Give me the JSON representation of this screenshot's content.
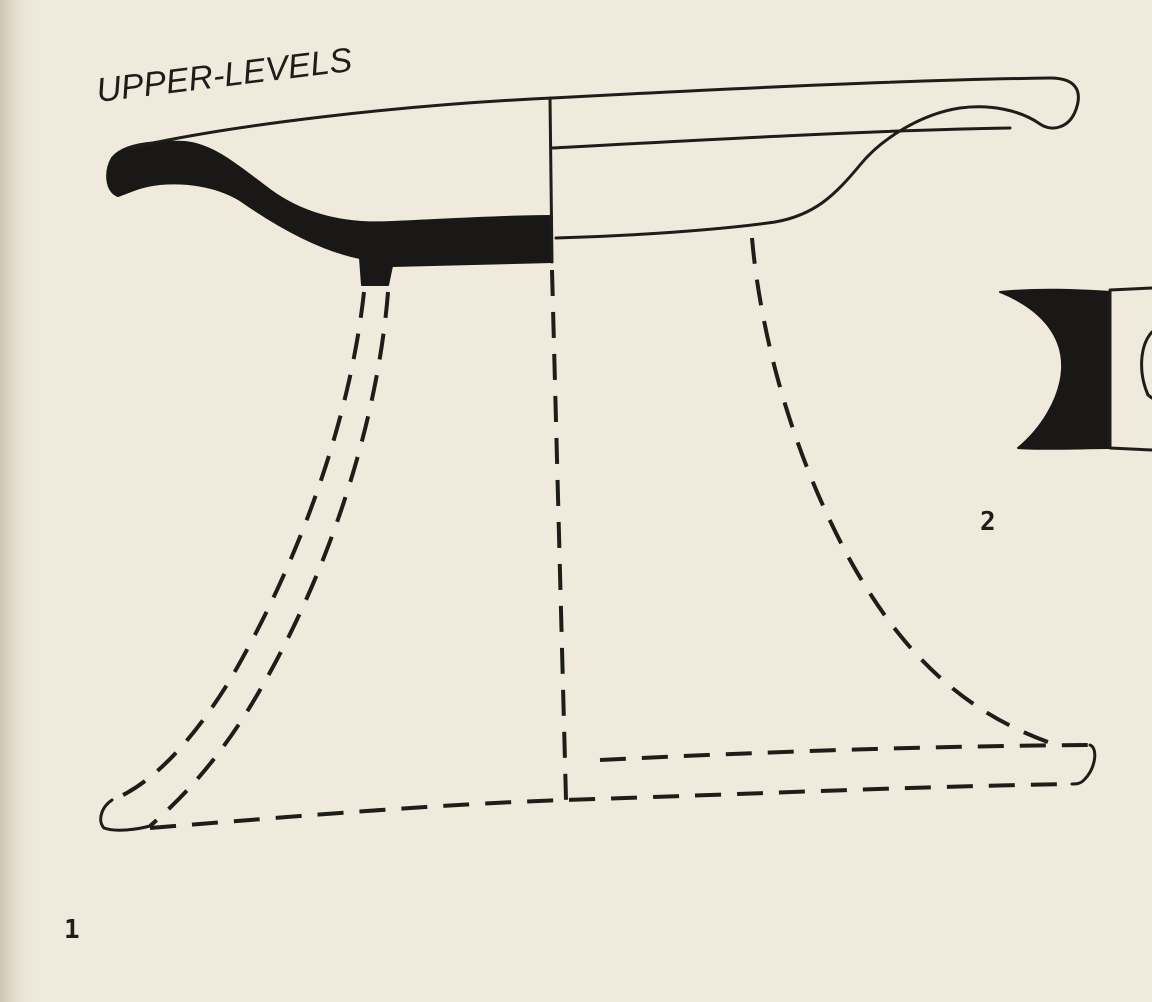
{
  "drawing": {
    "heading": "UPPER-LEVELS",
    "figure_1_label": "1",
    "figure_2_label": "2",
    "colors": {
      "paper": "#efeadb",
      "ink": "#1a1816"
    }
  }
}
